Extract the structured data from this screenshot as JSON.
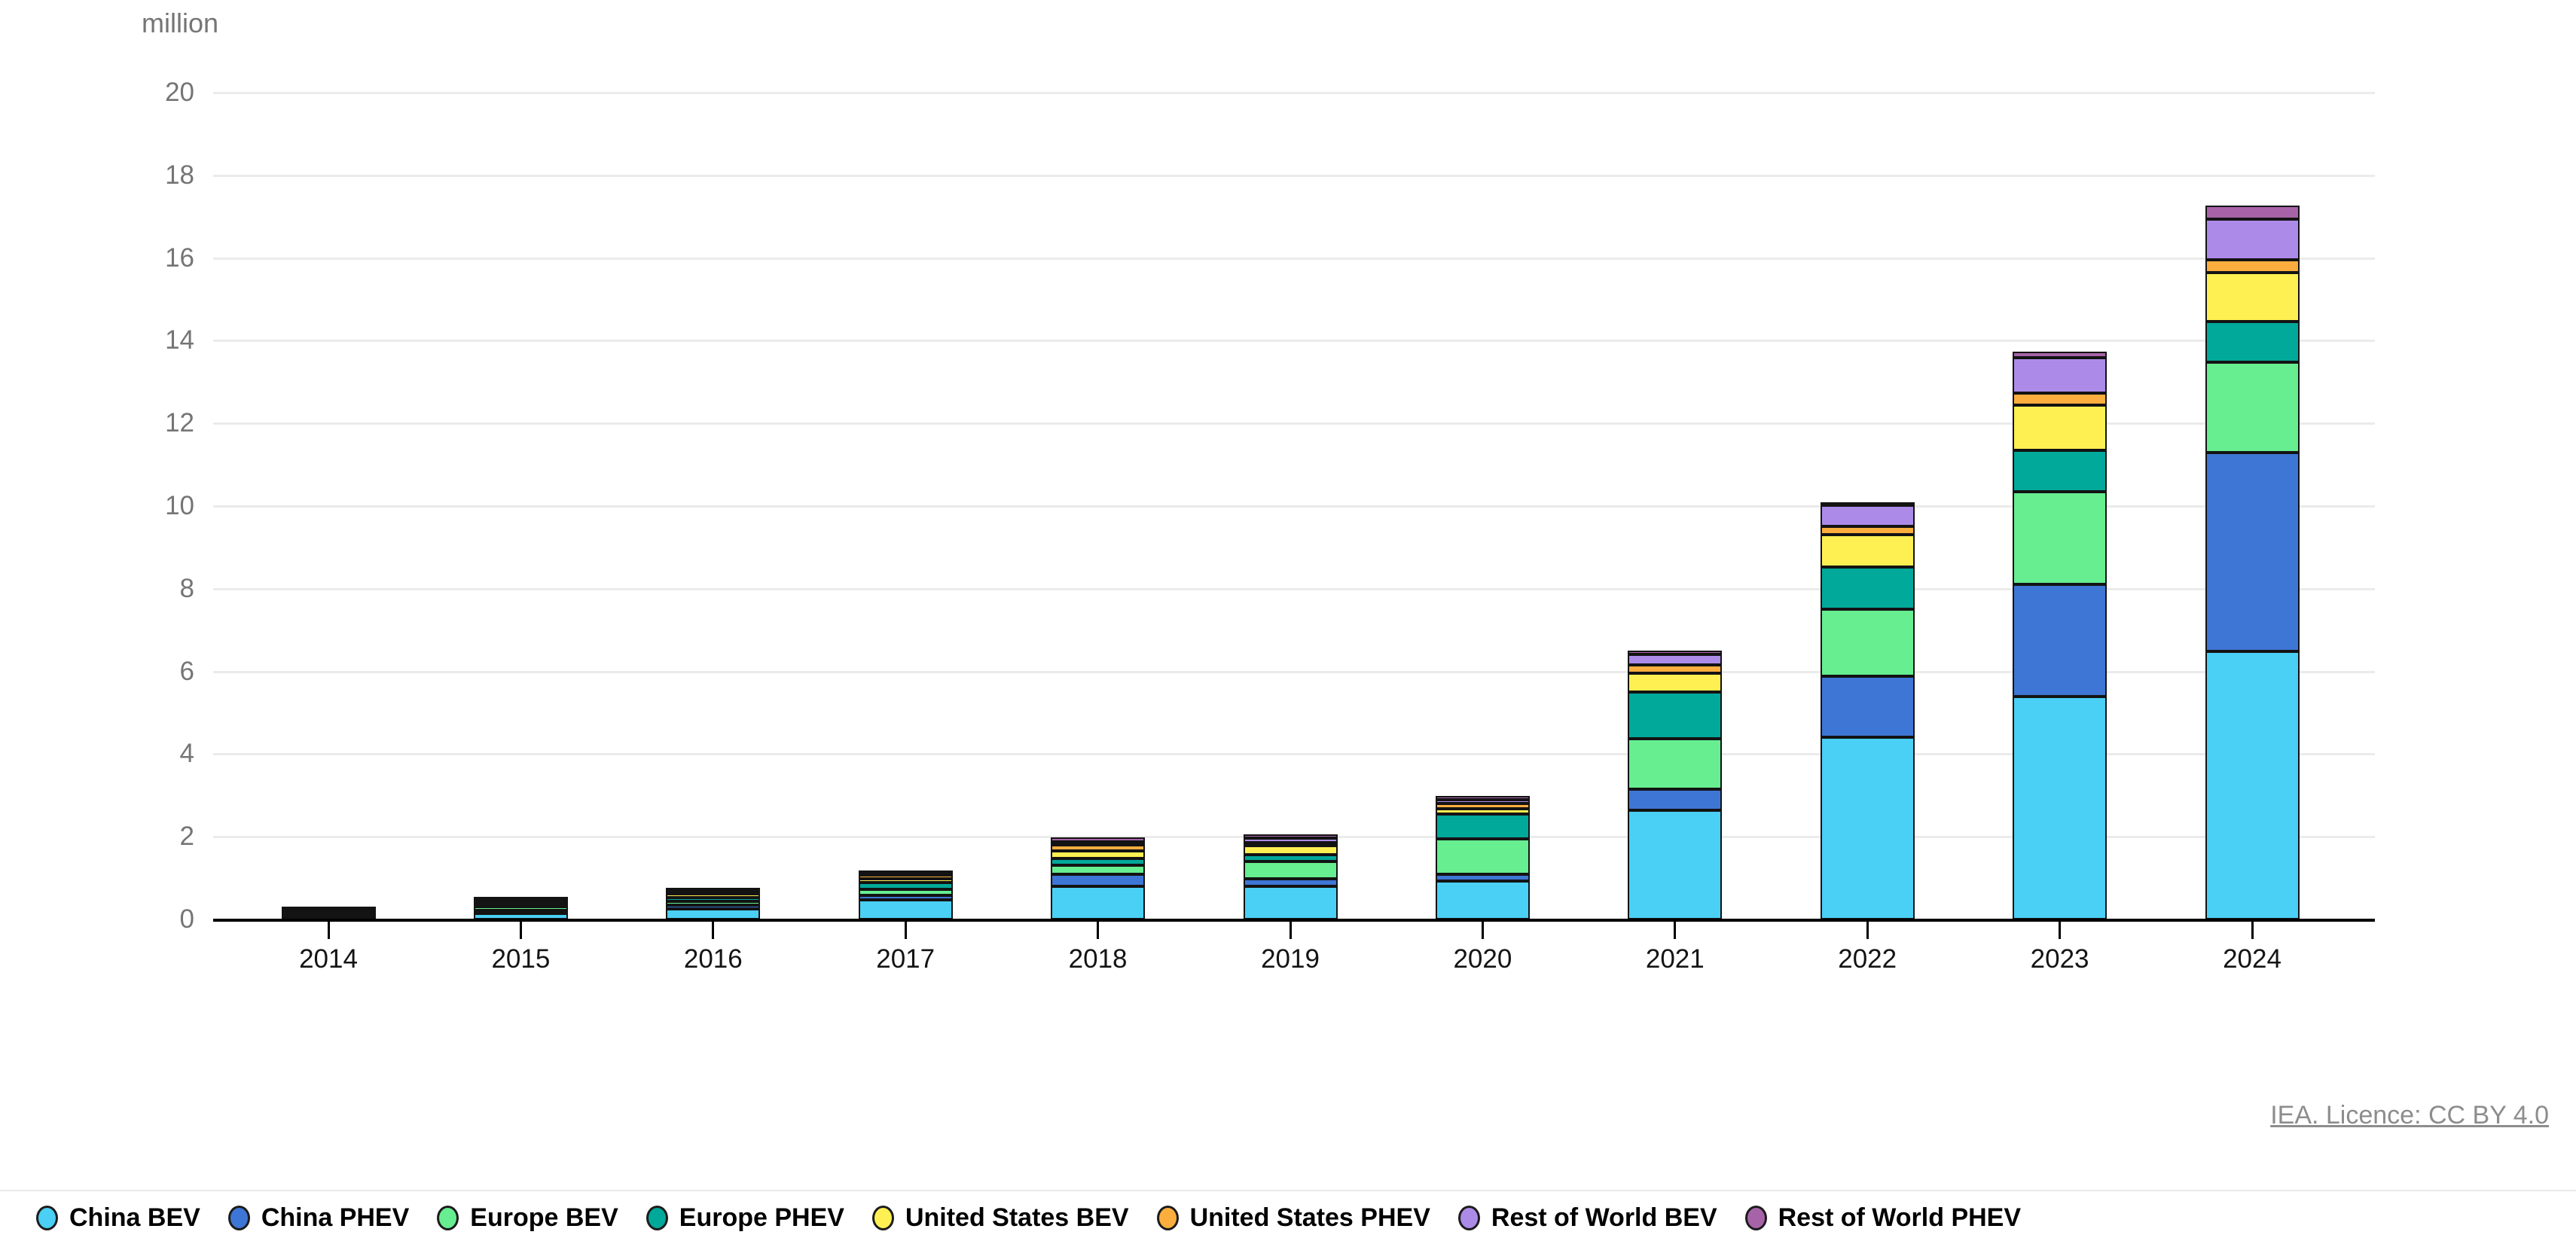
{
  "header": {
    "unit_label": "million"
  },
  "footer": {
    "license_label": "IEA. Licence: CC BY 4.0"
  },
  "chart_data": {
    "type": "bar",
    "stacked": true,
    "title": "",
    "ylabel": "million",
    "xlabel": "",
    "grid": true,
    "legend_position": "bottom",
    "ylim": [
      0,
      20
    ],
    "yticks": [
      0,
      2,
      4,
      6,
      8,
      10,
      12,
      14,
      16,
      18,
      20
    ],
    "categories": [
      "2014",
      "2015",
      "2016",
      "2017",
      "2018",
      "2019",
      "2020",
      "2021",
      "2022",
      "2023",
      "2024"
    ],
    "series": [
      {
        "name": "China BEV",
        "color": "#4ACFF5",
        "values": [
          0.04,
          0.14,
          0.26,
          0.48,
          0.81,
          0.81,
          0.92,
          2.65,
          4.4,
          5.4,
          6.48
        ]
      },
      {
        "name": "China PHEV",
        "color": "#3E76D5",
        "values": [
          0.03,
          0.07,
          0.08,
          0.1,
          0.28,
          0.17,
          0.17,
          0.5,
          1.49,
          2.71,
          4.81
        ]
      },
      {
        "name": "Europe BEV",
        "color": "#66EE91",
        "values": [
          0.06,
          0.1,
          0.09,
          0.14,
          0.22,
          0.42,
          0.86,
          1.22,
          1.61,
          2.24,
          2.19
        ]
      },
      {
        "name": "Europe PHEV",
        "color": "#00A99A",
        "values": [
          0.04,
          0.08,
          0.1,
          0.17,
          0.17,
          0.16,
          0.6,
          1.13,
          1.02,
          0.99,
          0.98
        ]
      },
      {
        "name": "United States BEV",
        "color": "#FEF052",
        "values": [
          0.06,
          0.07,
          0.09,
          0.1,
          0.17,
          0.22,
          0.13,
          0.46,
          0.78,
          1.1,
          1.19
        ]
      },
      {
        "name": "United States PHEV",
        "color": "#FBAE3D",
        "values": [
          0.06,
          0.04,
          0.08,
          0.09,
          0.15,
          0.08,
          0.12,
          0.19,
          0.2,
          0.29,
          0.31
        ]
      },
      {
        "name": "Rest of World BEV",
        "color": "#AC8BE8",
        "values": [
          0.01,
          0.02,
          0.04,
          0.06,
          0.08,
          0.1,
          0.09,
          0.26,
          0.51,
          0.86,
          0.98
        ]
      },
      {
        "name": "Rest of World PHEV",
        "color": "#A763A8",
        "values": [
          0.01,
          0.02,
          0.03,
          0.05,
          0.1,
          0.1,
          0.09,
          0.09,
          0.09,
          0.15,
          0.33
        ]
      }
    ]
  }
}
